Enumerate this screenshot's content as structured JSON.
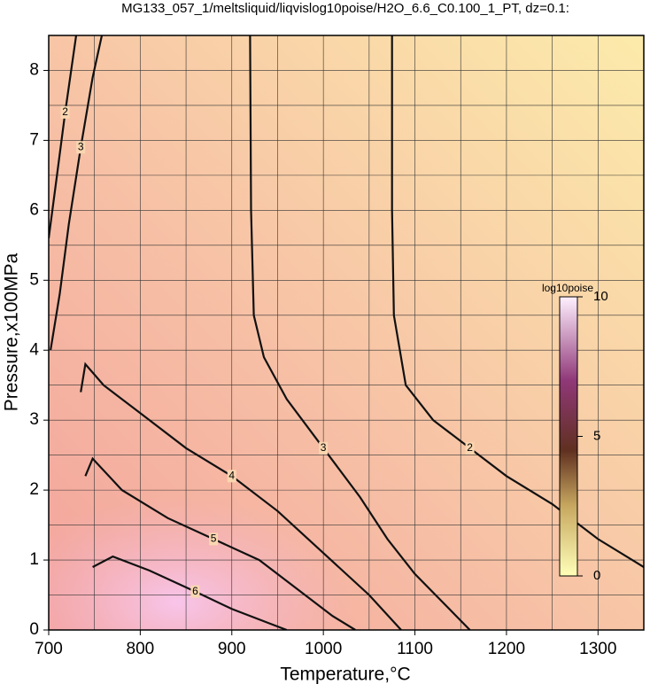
{
  "chart_data": {
    "type": "contour",
    "title": "MG133_057_1/meltsliquid/liqvislog10poise/H2O_6.6_C0.100_1_PT, dz=0.1:",
    "x_label": "Temperature,°C",
    "y_label": "Pressure,x100MPa",
    "xlim": [
      700,
      1350
    ],
    "ylim": [
      0,
      8.5
    ],
    "xticks": [
      700,
      800,
      900,
      1000,
      1100,
      1200,
      1300
    ],
    "yticks": [
      0,
      1,
      2,
      3,
      4,
      5,
      6,
      7,
      8
    ],
    "xgrid": [
      750,
      850,
      950,
      1050,
      1150,
      1250
    ],
    "ygrid": [
      0.5,
      1.5,
      2.5,
      3.5,
      4.5,
      5.5,
      6.5,
      7.5
    ],
    "grid": true,
    "contours": [
      {
        "level": 2,
        "x": [
          1075,
          1075,
          1077,
          1090,
          1120,
          1160,
          1200,
          1250,
          1300,
          1350
        ],
        "y": [
          8.5,
          6.0,
          4.5,
          3.5,
          3.0,
          2.6,
          2.2,
          1.8,
          1.3,
          0.9
        ]
      },
      {
        "level": 2,
        "x": [
          700,
          708,
          718,
          730
        ],
        "y": [
          5.6,
          6.4,
          7.4,
          8.5
        ]
      },
      {
        "level": 3,
        "x": [
          920,
          921,
          924,
          935,
          960,
          1000,
          1040,
          1070,
          1100,
          1130,
          1160
        ],
        "y": [
          8.5,
          6.0,
          4.5,
          3.9,
          3.3,
          2.6,
          1.9,
          1.3,
          0.8,
          0.4,
          0
        ]
      },
      {
        "level": 3,
        "x": [
          702,
          712,
          722,
          735,
          748,
          758
        ],
        "y": [
          4.0,
          4.8,
          5.8,
          6.9,
          7.9,
          8.5
        ]
      },
      {
        "level": 4,
        "x": [
          735,
          740,
          760,
          800,
          850,
          900,
          950,
          1000,
          1050,
          1085
        ],
        "y": [
          3.4,
          3.8,
          3.5,
          3.1,
          2.6,
          2.2,
          1.7,
          1.1,
          0.5,
          0
        ]
      },
      {
        "level": 5,
        "x": [
          740,
          748,
          780,
          830,
          880,
          930,
          970,
          1010,
          1035
        ],
        "y": [
          2.2,
          2.45,
          2.0,
          1.6,
          1.3,
          1.0,
          0.6,
          0.2,
          0
        ]
      },
      {
        "level": 6,
        "x": [
          748,
          770,
          810,
          860,
          900,
          940,
          960
        ],
        "y": [
          0.9,
          1.05,
          0.85,
          0.55,
          0.3,
          0.1,
          0
        ]
      }
    ],
    "colorbar": {
      "label": "log10poise",
      "lim": [
        0,
        10
      ],
      "ticks": [
        0,
        5,
        10
      ]
    }
  }
}
